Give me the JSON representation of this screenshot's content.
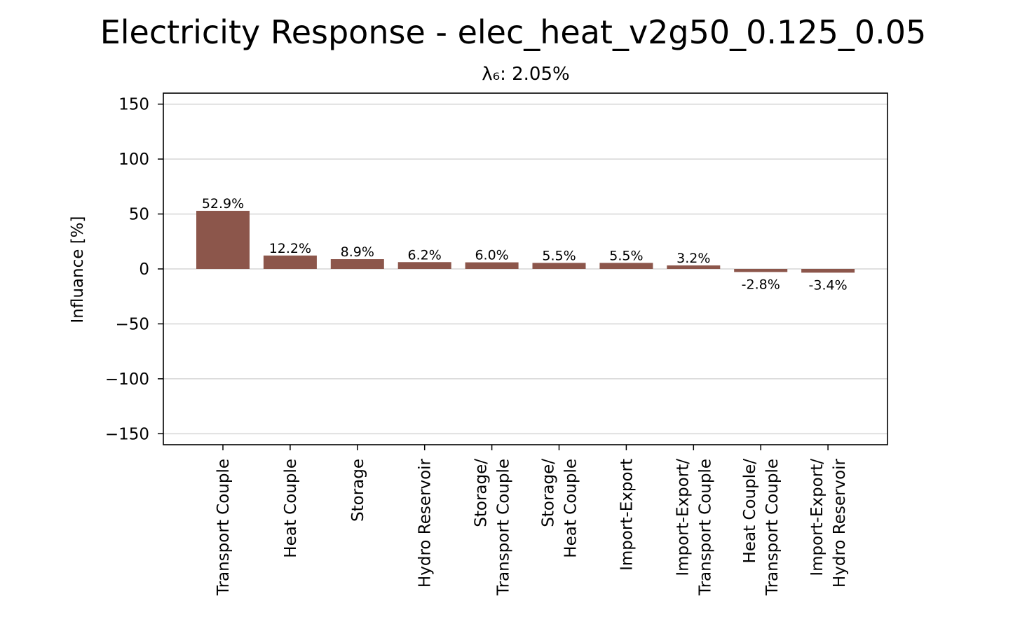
{
  "chart_data": {
    "type": "bar",
    "title": "Electricity Response - elec_heat_v2g50_0.125_0.05",
    "subtitle": "λ₆: 2.05%",
    "xlabel": "",
    "ylabel": "Influance [%]",
    "ylim": [
      -160,
      160
    ],
    "yticks": [
      150,
      100,
      50,
      0,
      -50,
      -100,
      -150
    ],
    "ytick_labels": [
      "150",
      "100",
      "50",
      "0",
      "−50",
      "−100",
      "−150"
    ],
    "grid": "horizontal",
    "bar_color": "#8c564b",
    "categories": [
      "Transport Couple",
      "Heat Couple",
      "Storage",
      "Hydro Reservoir",
      "Storage/\nTransport Couple",
      "Storage/\nHeat Couple",
      "Import-Export",
      "Import-Export/\nTransport Couple",
      "Heat Couple/\nTransport Couple",
      "Import-Export/\nHydro Reservoir"
    ],
    "values": [
      52.9,
      12.2,
      8.9,
      6.2,
      6.0,
      5.5,
      5.5,
      3.2,
      -2.8,
      -3.4
    ],
    "data_labels": [
      "52.9%",
      "12.2%",
      "8.9%",
      "6.2%",
      "6.0%",
      "5.5%",
      "5.5%",
      "3.2%",
      "-2.8%",
      "-3.4%"
    ]
  }
}
